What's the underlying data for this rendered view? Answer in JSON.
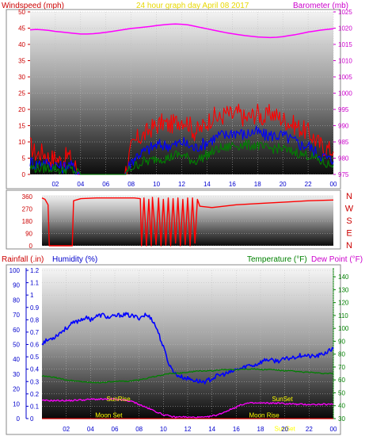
{
  "header": {
    "wind_label": "Windspeed (mph)",
    "title": "24 hour graph day   April 08 2017",
    "baro_label": "Barometer (mb)"
  },
  "bottom_header": {
    "rain_label": "Rainfall (.in)",
    "humidity_label": "Humidity (%)",
    "temp_label": "Temperature (°F)",
    "dew_label": "Dew Point (°F)"
  },
  "colors": {
    "wind": "#ff0000",
    "gust_mid": "#0000ff",
    "wind_low": "#008000",
    "barometer": "#ff00ff",
    "direction": "#ff0000",
    "humidity": "#0000ff",
    "temperature": "#008000",
    "dewpoint": "#ff00ff",
    "rain": "#cc0000",
    "annotation": "#ffff00"
  },
  "chart_data": [
    {
      "id": "wind-baro",
      "type": "line",
      "x_ticks": [
        "02",
        "04",
        "06",
        "08",
        "10",
        "12",
        "14",
        "16",
        "18",
        "20",
        "22",
        "00"
      ],
      "left_axis": {
        "label": "Windspeed (mph)",
        "range": [
          0,
          50
        ],
        "ticks": [
          "0",
          "5",
          "10",
          "15",
          "20",
          "25",
          "30",
          "35",
          "40",
          "45",
          "50"
        ]
      },
      "right_axis": {
        "label": "Barometer (mb)",
        "range": [
          975,
          1025
        ],
        "ticks": [
          "975",
          "980",
          "985",
          "990",
          "995",
          "1000",
          "1005",
          "1010",
          "1015",
          "1020",
          "1025"
        ]
      },
      "x": [
        0,
        0.5,
        1,
        1.5,
        2,
        2.5,
        3,
        3.5,
        4,
        4.5,
        5,
        5.5,
        6,
        6.5,
        7,
        7.5,
        8,
        8.5,
        9,
        9.5,
        10,
        10.5,
        11,
        11.5,
        12,
        12.5,
        13,
        13.5,
        14,
        14.5,
        15,
        15.5,
        16,
        16.5,
        17,
        17.5,
        18,
        18.5,
        19,
        19.5,
        20,
        20.5,
        21,
        21.5,
        22,
        22.5,
        23,
        23.5,
        24
      ],
      "series": [
        {
          "key": "gust",
          "axis": "left",
          "values": [
            9,
            6,
            7,
            5,
            5,
            4,
            6,
            3,
            0,
            0,
            0,
            0,
            0,
            0,
            0,
            0,
            8,
            11,
            12,
            14,
            15,
            16,
            15,
            16,
            17,
            16,
            13,
            14,
            16,
            18,
            17,
            19,
            18,
            19,
            17,
            18,
            19,
            17,
            19,
            18,
            17,
            16,
            15,
            14,
            13,
            11,
            9,
            8,
            7
          ]
        },
        {
          "key": "average",
          "axis": "left",
          "values": [
            4,
            3,
            4,
            3,
            3,
            2,
            3,
            2,
            0,
            0,
            0,
            0,
            0,
            0,
            0,
            0,
            4,
            6,
            7,
            8,
            9,
            9,
            9,
            9,
            10,
            9,
            8,
            9,
            10,
            11,
            12,
            12,
            13,
            13,
            12,
            13,
            13,
            12,
            12,
            12,
            12,
            11,
            10,
            9,
            9,
            7,
            6,
            5,
            4
          ]
        },
        {
          "key": "low",
          "axis": "left",
          "values": [
            2,
            2,
            2,
            2,
            2,
            1,
            2,
            1,
            0,
            0,
            0,
            0,
            0,
            0,
            0,
            0,
            2,
            3,
            4,
            4,
            5,
            5,
            5,
            6,
            6,
            5,
            4,
            5,
            6,
            7,
            8,
            8,
            9,
            9,
            9,
            9,
            9,
            8,
            8,
            8,
            8,
            7,
            7,
            6,
            6,
            5,
            4,
            3,
            3
          ]
        },
        {
          "key": "barometer",
          "axis": "right",
          "values": [
            1019.5,
            1019.6,
            1019.5,
            1019.3,
            1019.0,
            1018.8,
            1018.6,
            1018.4,
            1018.2,
            1018.2,
            1018.3,
            1018.5,
            1018.7,
            1019.0,
            1019.3,
            1019.6,
            1019.9,
            1020.1,
            1020.3,
            1020.5,
            1020.8,
            1021.0,
            1021.2,
            1021.3,
            1021.2,
            1021.0,
            1020.6,
            1020.2,
            1019.8,
            1019.4,
            1019.0,
            1018.6,
            1018.3,
            1018.0,
            1017.7,
            1017.5,
            1017.3,
            1017.2,
            1017.1,
            1017.2,
            1017.4,
            1017.7,
            1018.0,
            1018.4,
            1018.8,
            1019.1,
            1019.4,
            1019.6,
            1019.8
          ]
        }
      ]
    },
    {
      "id": "direction",
      "type": "line",
      "y_range": [
        0,
        360
      ],
      "y_ticks": [
        "0",
        "90",
        "180",
        "270",
        "360"
      ],
      "compass": [
        "N",
        "W",
        "S",
        "E",
        "N"
      ],
      "points": [
        [
          0,
          350
        ],
        [
          0.25,
          340
        ],
        [
          0.5,
          300
        ],
        [
          0.6,
          0
        ],
        [
          1.3,
          0
        ],
        [
          2.5,
          0
        ],
        [
          2.6,
          330
        ],
        [
          3.2,
          345
        ],
        [
          4.5,
          350
        ],
        [
          7.6,
          350
        ],
        [
          8.1,
          345
        ],
        [
          8.2,
          0
        ],
        [
          8.4,
          350
        ],
        [
          8.6,
          0
        ],
        [
          8.8,
          340
        ],
        [
          9.0,
          0
        ],
        [
          9.1,
          355
        ],
        [
          9.4,
          10
        ],
        [
          9.6,
          350
        ],
        [
          9.8,
          0
        ],
        [
          10.0,
          340
        ],
        [
          10.2,
          5
        ],
        [
          10.4,
          350
        ],
        [
          10.6,
          0
        ],
        [
          10.8,
          345
        ],
        [
          11.0,
          20
        ],
        [
          11.2,
          350
        ],
        [
          11.4,
          0
        ],
        [
          11.6,
          340
        ],
        [
          11.8,
          10
        ],
        [
          12.0,
          350
        ],
        [
          12.2,
          0
        ],
        [
          12.4,
          350
        ],
        [
          12.6,
          20
        ],
        [
          12.8,
          340
        ],
        [
          13.0,
          290
        ],
        [
          14.0,
          280
        ],
        [
          16.0,
          300
        ],
        [
          18.0,
          310
        ],
        [
          20.0,
          320
        ],
        [
          22.0,
          330
        ],
        [
          24.0,
          335
        ]
      ]
    },
    {
      "id": "humidity-temp",
      "type": "line",
      "x_ticks": [
        "02",
        "04",
        "06",
        "08",
        "10",
        "12",
        "14",
        "16",
        "18",
        "20",
        "22",
        "00"
      ],
      "left_axis": {
        "label": "Humidity (%)",
        "range": [
          0,
          100
        ],
        "ticks": [
          "0",
          "10",
          "20",
          "30",
          "40",
          "50",
          "60",
          "70",
          "80",
          "90",
          "100"
        ]
      },
      "rain_axis": {
        "label": "Rainfall (.in)",
        "range": [
          0,
          1.2
        ],
        "ticks": [
          "0",
          "0.1",
          "0.2",
          "0.3",
          "0.4",
          "0.5",
          "0.6",
          "0.7",
          "0.8",
          "0.9",
          "1",
          "1.1",
          "1.2"
        ]
      },
      "right_axis": {
        "label": "Temperature (°F)",
        "range": [
          30,
          145
        ],
        "ticks": [
          "30",
          "40",
          "50",
          "60",
          "70",
          "80",
          "90",
          "100",
          "110",
          "120",
          "130",
          "140"
        ]
      },
      "x": [
        0,
        0.5,
        1,
        1.5,
        2,
        2.5,
        3,
        3.5,
        4,
        4.5,
        5,
        5.5,
        6,
        6.5,
        7,
        7.5,
        8,
        8.5,
        9,
        9.5,
        10,
        10.5,
        11,
        11.5,
        12,
        12.5,
        13,
        13.5,
        14,
        14.5,
        15,
        15.5,
        16,
        16.5,
        17,
        17.5,
        18,
        18.5,
        19,
        19.5,
        20,
        20.5,
        21,
        21.5,
        22,
        22.5,
        23,
        23.5,
        24
      ],
      "series": [
        {
          "key": "humidity",
          "axis": "left",
          "values": [
            51,
            53,
            55,
            58,
            61,
            64,
            66,
            68,
            67,
            69,
            70,
            68,
            69,
            70,
            70,
            69,
            68,
            70,
            68,
            60,
            48,
            36,
            30,
            28,
            27,
            26,
            25,
            25,
            27,
            29,
            30,
            31,
            33,
            34,
            36,
            36,
            38,
            40,
            39,
            39,
            40,
            41,
            42,
            43,
            42,
            42,
            43,
            45,
            47
          ]
        },
        {
          "key": "temperature",
          "axis": "right",
          "values": [
            63,
            62.5,
            62,
            61,
            60,
            59.5,
            59,
            58.5,
            58,
            58,
            58,
            58.5,
            58.5,
            59,
            59,
            59.5,
            60,
            61,
            62,
            63,
            64,
            65,
            65,
            65.5,
            66,
            66.5,
            67,
            67,
            67,
            67.5,
            68,
            68,
            68,
            68.5,
            68.5,
            68.5,
            68,
            68,
            68,
            67.5,
            67,
            67,
            66.5,
            66,
            66,
            65.5,
            65,
            65,
            65
          ]
        },
        {
          "key": "dewpoint",
          "axis": "right",
          "values": [
            44,
            44,
            44,
            44,
            44,
            44,
            44.5,
            44.5,
            45,
            45,
            45,
            45,
            45,
            44.5,
            44,
            43,
            41,
            39,
            37,
            35,
            33,
            32,
            31,
            31.5,
            31,
            31,
            31,
            31,
            32,
            33,
            35,
            37,
            39,
            41,
            42,
            42,
            42,
            42,
            42,
            42,
            41.5,
            41.5,
            41,
            41,
            41,
            41,
            41,
            41,
            41
          ]
        },
        {
          "key": "rain",
          "axis": "rain",
          "values": [
            0,
            0,
            0,
            0,
            0,
            0,
            0,
            0,
            0,
            0,
            0,
            0,
            0,
            0,
            0,
            0,
            0,
            0,
            0,
            0,
            0,
            0,
            0,
            0,
            0,
            0,
            0,
            0,
            0,
            0,
            0,
            0,
            0,
            0,
            0,
            0,
            0,
            0,
            0,
            0,
            0,
            0,
            0,
            0,
            0,
            0,
            0,
            0,
            0
          ]
        }
      ],
      "annotations": [
        {
          "label": "SunRise",
          "x": 6.3,
          "y": 0.14
        },
        {
          "label": "SunSet",
          "x": 19.8,
          "y": 0.14
        },
        {
          "label": "Moon Set",
          "x": 5.5,
          "y": 0.01
        },
        {
          "label": "Moon Rise",
          "x": 18.3,
          "y": 0.01
        },
        {
          "label": "SunSet",
          "x": 20.0,
          "y": -0.1
        }
      ]
    }
  ]
}
